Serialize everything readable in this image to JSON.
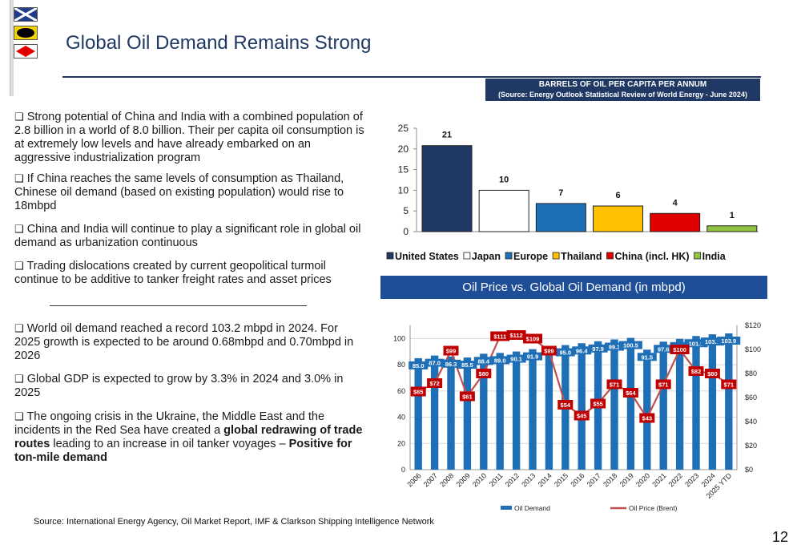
{
  "header": {
    "title": "Global Oil Demand Remains Strong",
    "flags": [
      "flag-blue-x-icon",
      "flag-black-circle-icon",
      "flag-red-diamond-icon"
    ]
  },
  "bullets_top": [
    "Strong potential of China and India with a combined population of  2.8 billion in a world of 8.0 billion. Their per capita oil consumption is at extremely low levels and have already embarked on an aggressive industrialization program",
    "If China reaches the same levels of consumption as Thailand, Chinese oil demand (based on existing population) would rise to 18mbpd",
    "China and India will continue to play a significant role in global oil demand as urbanization continuous",
    "Trading dislocations created by current geopolitical turmoil continue to be additive to tanker freight rates and asset prices"
  ],
  "bullets_bottom": {
    "b1": "World oil demand reached a record 103.2 mbpd in 2024. For 2025 growth is expected to be around 0.68mbpd and 0.70mbpd in 2026",
    "b2": "Global GDP is expected to grow by 3.3% in 2024 and 3.0% in 2025",
    "b3_pre": "The ongoing crisis in the Ukraine, the Middle East and the incidents in the Red Sea have created a ",
    "b3_bold1": "global redrawing of trade routes",
    "b3_mid": " leading to an increase in oil tanker voyages – ",
    "b3_bold2": "Positive for ton-mile demand"
  },
  "bar_chart_header": {
    "line1": "BARRELS OF OIL PER CAPITA PER ANNUM",
    "line2": "(Source: Energy Outlook Statistical Review of World Energy - June 2024)"
  },
  "line_chart_header": "Oil Price vs. Global Oil Demand (in mbpd)",
  "source": "Source: International Energy Agency, Oil Market Report, IMF & Clarkson Shipping Intelligence Network",
  "page_number": "12",
  "chart_data": [
    {
      "type": "bar",
      "categories": [
        "United States",
        "Japan",
        "Europe",
        "Thailand",
        "China (incl. HK)",
        "India"
      ],
      "values": [
        21,
        10,
        7,
        6,
        4,
        1
      ],
      "bar_values": [
        20.8,
        10.0,
        6.8,
        6.2,
        4.4,
        1.4
      ],
      "colors": [
        "#1f3864",
        "#ffffff",
        "#1f6fb7",
        "#ffc000",
        "#e00000",
        "#8fc23f"
      ],
      "ylim": [
        0,
        25
      ],
      "yticks": [
        0,
        5,
        10,
        15,
        20,
        25
      ],
      "legend": "bottom",
      "grid": false
    },
    {
      "type": "bar+line",
      "categories": [
        "2006",
        "2007",
        "2008",
        "2009",
        "2010",
        "2011",
        "2012",
        "2013",
        "2014",
        "2015",
        "2016",
        "2017",
        "2018",
        "2019",
        "2020",
        "2021",
        "2022",
        "2023",
        "2024",
        "2025 YTD"
      ],
      "series": [
        {
          "name": "Oil Demand",
          "type": "bar",
          "axis": "left",
          "color": "#1f6fb7",
          "values": [
            85.0,
            87.0,
            86.3,
            85.5,
            88.4,
            89.0,
            90.1,
            91.9,
            92.5,
            95.0,
            96.4,
            97.9,
            99.3,
            100.5,
            91.5,
            97.6,
            99.7,
            101.9,
            103.2,
            103.9
          ],
          "labels": [
            "85.0",
            "87.0",
            "86.3",
            "85.5",
            "88.4",
            "89.0",
            "90.1",
            "91.9",
            "",
            "95.0",
            "96.4",
            "97.9",
            "99.3",
            "100.5",
            "91.5",
            "97.6",
            "99.7",
            "101.9",
            "103.2",
            "103.9"
          ]
        },
        {
          "name": "Oil Price (Brent)",
          "type": "line",
          "axis": "right",
          "color": "#c0504d",
          "values": [
            65,
            72,
            99,
            61,
            80,
            111,
            112,
            109,
            99,
            54,
            45,
            55,
            71,
            64,
            43,
            71,
            100,
            82,
            80,
            71
          ],
          "labels": [
            "$65",
            "$72",
            "$99",
            "$61",
            "$80",
            "$111",
            "$112",
            "$109",
            "$99",
            "$54",
            "$45",
            "$55",
            "$71",
            "$64",
            "$43",
            "$71",
            "$100",
            "$82",
            "$80",
            "$71"
          ]
        }
      ],
      "ylim_left": [
        0,
        110
      ],
      "yticks_left": [
        0,
        20,
        40,
        60,
        80,
        100
      ],
      "ylim_right": [
        0,
        120
      ],
      "yticks_right": [
        "$0",
        "$20",
        "$40",
        "$60",
        "$80",
        "$100",
        "$120"
      ],
      "legend": "bottom",
      "grid": true
    }
  ]
}
